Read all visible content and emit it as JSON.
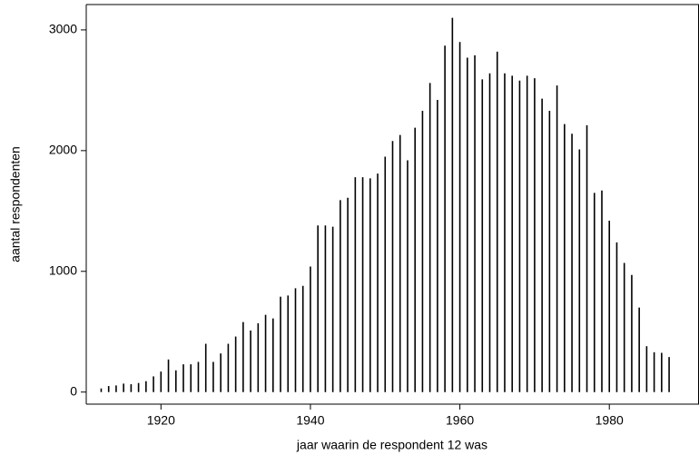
{
  "chart_data": {
    "type": "spike",
    "xlabel": "jaar waarin de respondent 12 was",
    "ylabel": "aantal respondenten",
    "x": [
      1912,
      1913,
      1914,
      1915,
      1916,
      1917,
      1918,
      1919,
      1920,
      1921,
      1922,
      1923,
      1924,
      1925,
      1926,
      1927,
      1928,
      1929,
      1930,
      1931,
      1932,
      1933,
      1934,
      1935,
      1936,
      1937,
      1938,
      1939,
      1940,
      1941,
      1942,
      1943,
      1944,
      1945,
      1946,
      1947,
      1948,
      1949,
      1950,
      1951,
      1952,
      1953,
      1954,
      1955,
      1956,
      1957,
      1958,
      1959,
      1960,
      1961,
      1962,
      1963,
      1964,
      1965,
      1966,
      1967,
      1968,
      1969,
      1970,
      1971,
      1972,
      1973,
      1974,
      1975,
      1976,
      1977,
      1978,
      1979,
      1980,
      1981,
      1982,
      1983,
      1984,
      1985,
      1986,
      1987,
      1988
    ],
    "values": [
      30,
      50,
      55,
      70,
      65,
      75,
      90,
      130,
      170,
      270,
      180,
      230,
      230,
      250,
      400,
      250,
      320,
      400,
      460,
      580,
      510,
      570,
      640,
      610,
      790,
      800,
      860,
      880,
      1040,
      1380,
      1380,
      1370,
      1590,
      1610,
      1780,
      1780,
      1770,
      1810,
      1950,
      2080,
      2130,
      1920,
      2190,
      2330,
      2560,
      2420,
      2870,
      3100,
      2900,
      2770,
      2790,
      2590,
      2640,
      2820,
      2640,
      2620,
      2580,
      2620,
      2600,
      2430,
      2330,
      2540,
      2220,
      2140,
      2010,
      2210,
      1650,
      1670,
      1420,
      1240,
      1070,
      970,
      700,
      380,
      330,
      325,
      290
    ],
    "color": "#000000",
    "xlim": [
      1910,
      1992
    ],
    "xticks": [
      1920,
      1940,
      1960,
      1980
    ],
    "ylim": [
      -100,
      3210
    ],
    "yticks": [
      0,
      1000,
      2000,
      3000
    ]
  }
}
